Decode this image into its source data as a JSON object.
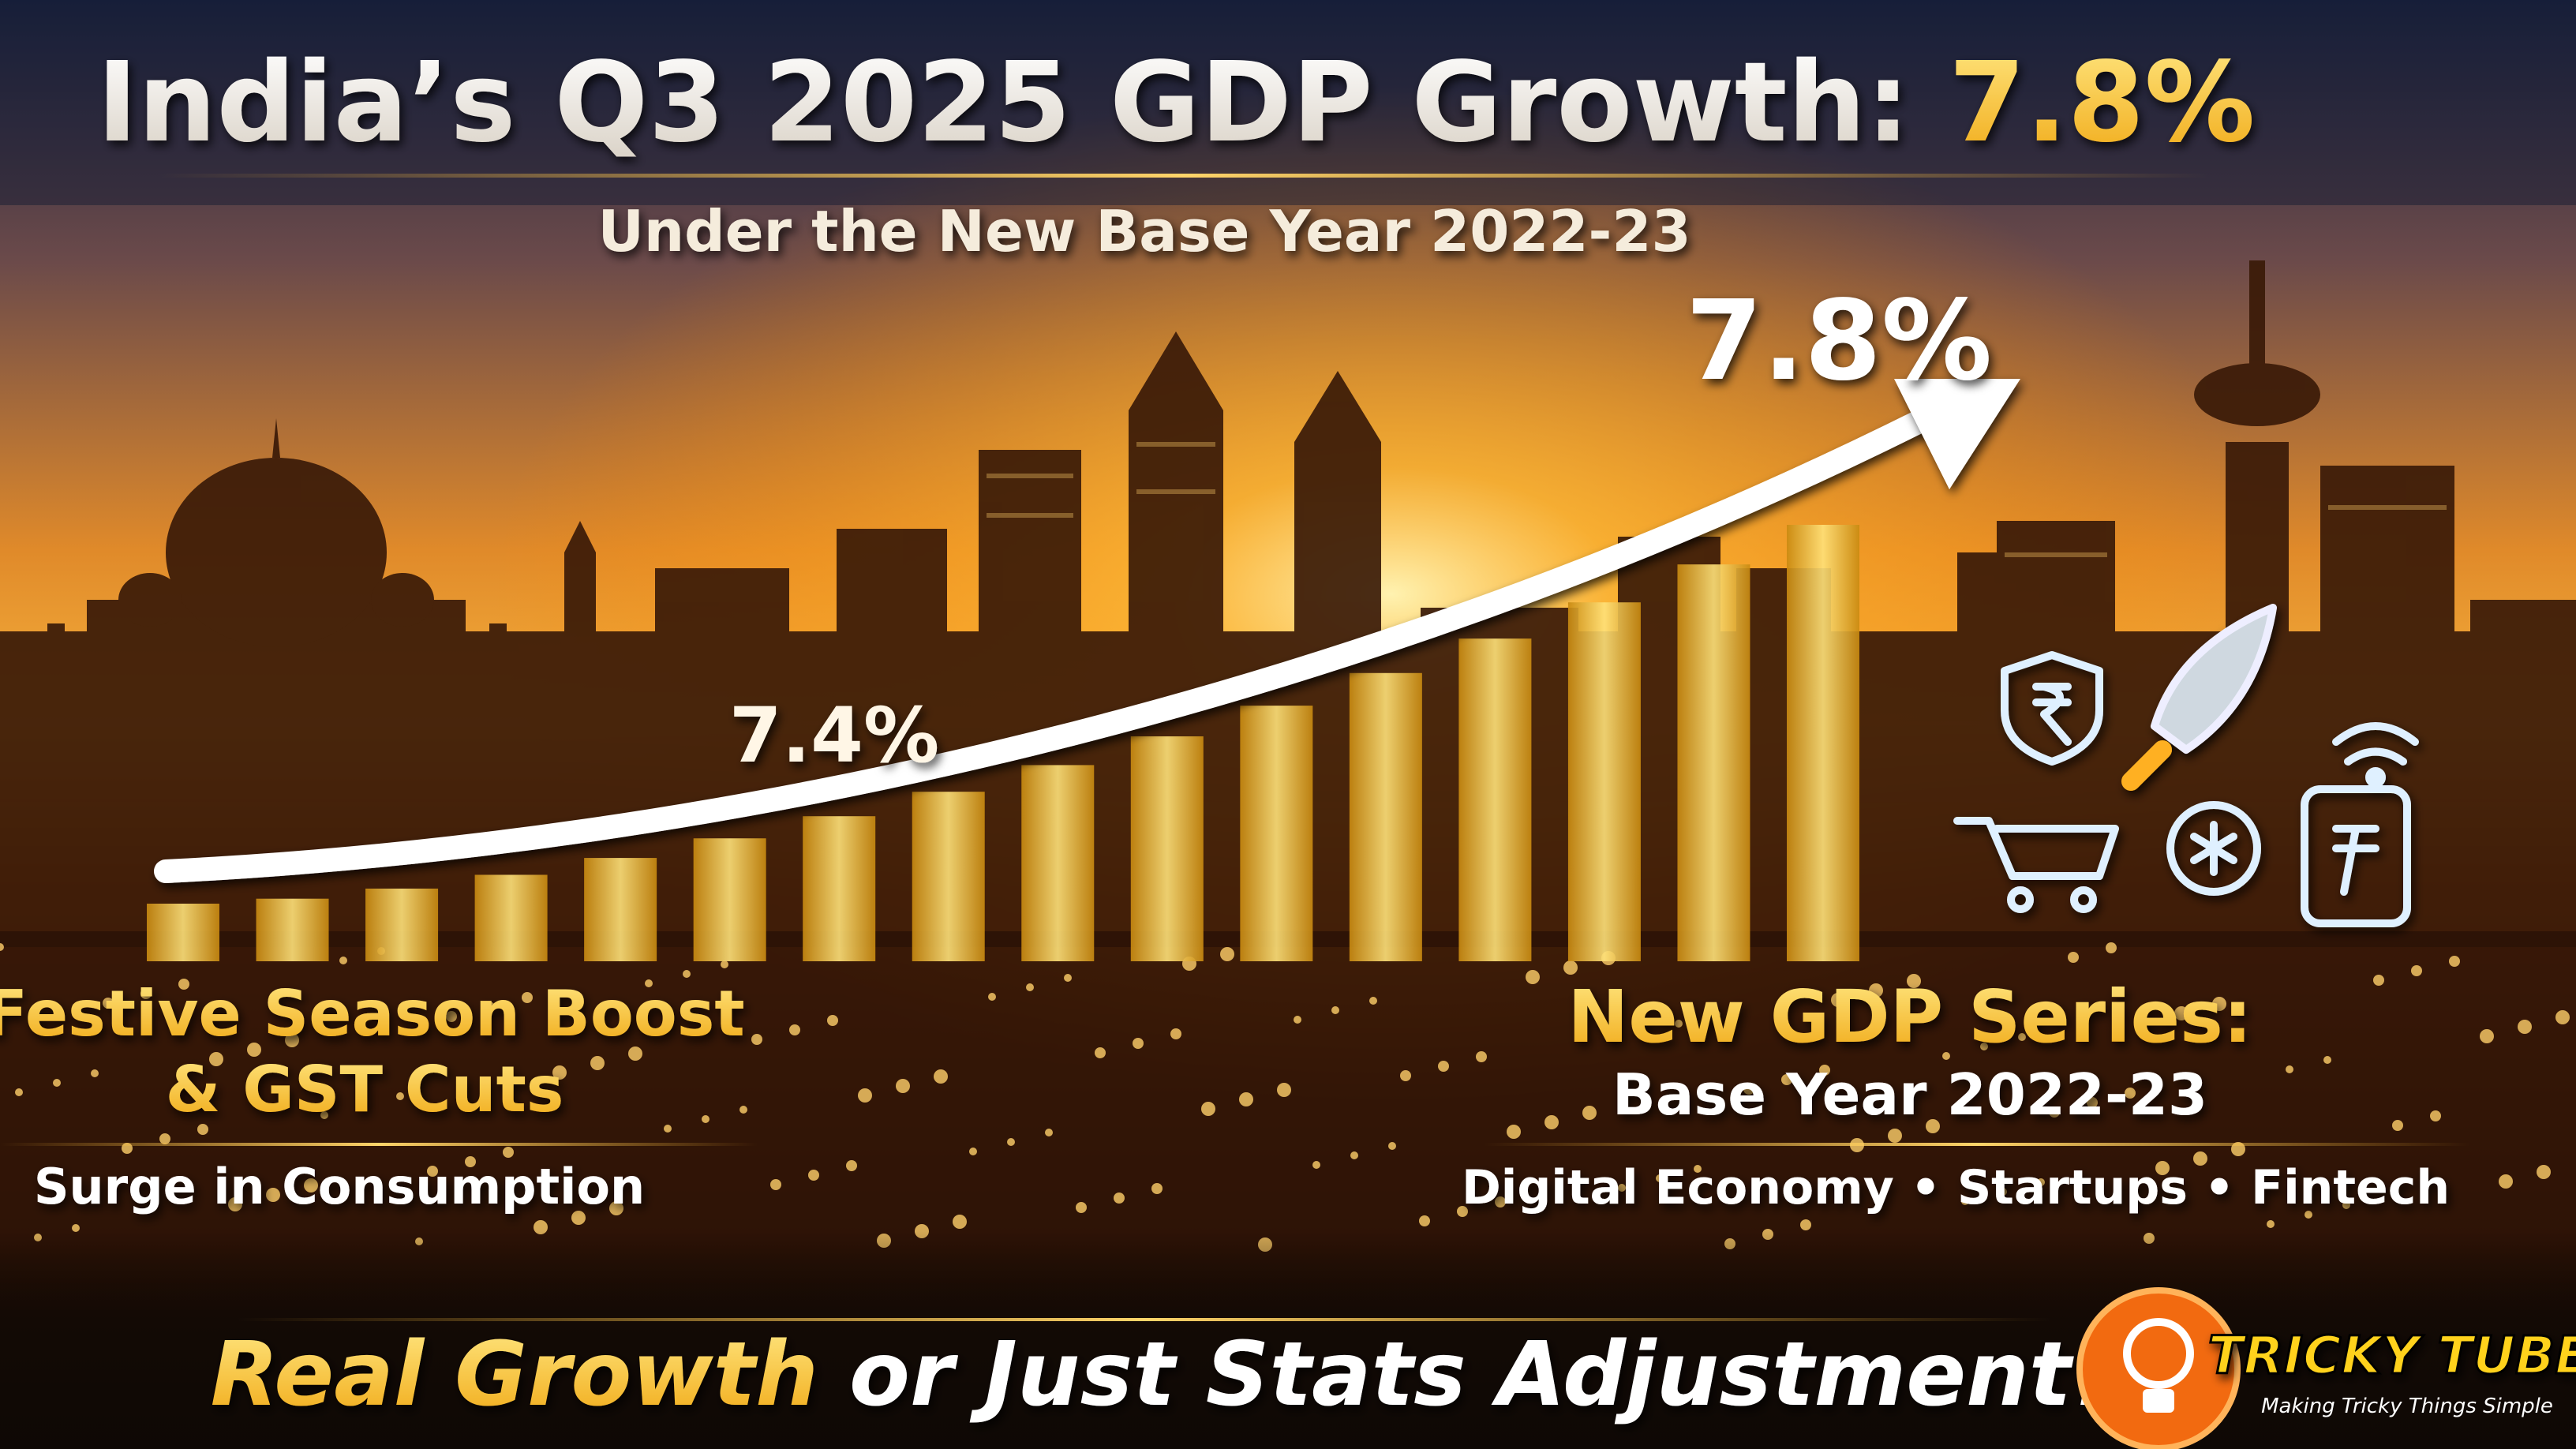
{
  "title": {
    "lead": "India’s Q3 2025 GDP Growth:",
    "highlight": "7.8%"
  },
  "subtitle": "Under the New Base Year 2022-23",
  "arrow_labels": {
    "start": "7.4%",
    "end": "7.8%"
  },
  "left_panel": {
    "heading_line1": "Festive Season Boost",
    "heading_line2": "& GST Cuts",
    "caption": "Surge in Consumption"
  },
  "right_panel": {
    "heading": "New GDP Series:",
    "subheading": "Base Year 2022-23",
    "caption": "Digital Economy • Startups • Fintech"
  },
  "question": {
    "highlight": "Real Growth",
    "rest": "or Just Stats Adjustment?"
  },
  "logo": {
    "name": "TRICKY TUBE",
    "tagline": "Making Tricky Things Simple"
  }
}
